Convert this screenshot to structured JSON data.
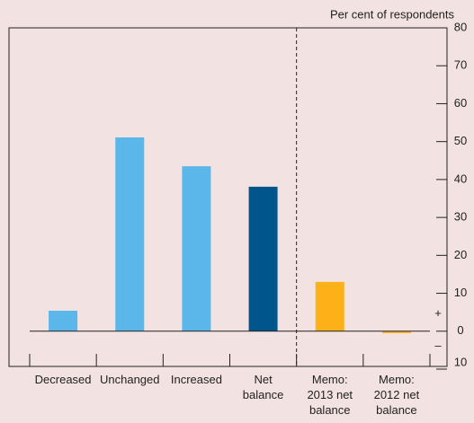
{
  "chart_data": {
    "type": "bar",
    "y_label": "Per cent of respondents",
    "categories": [
      "Decreased",
      "Unchanged",
      "Increased",
      "Net balance",
      "Memo: 2013 net balance",
      "Memo: 2012 net balance"
    ],
    "values": [
      5.4,
      51.1,
      43.5,
      38.1,
      13,
      -0.5
    ],
    "colors": [
      "#5bb6e9",
      "#5bb6e9",
      "#5bb6e9",
      "#00568c",
      "#fbb117",
      "#fbb117"
    ],
    "ylim": [
      -10,
      80
    ],
    "yticks": [
      {
        "value": -10,
        "label": "10"
      },
      0,
      10,
      20,
      30,
      40,
      50,
      60,
      70,
      80
    ],
    "annotations": [
      "+",
      "–"
    ],
    "grid": false
  }
}
